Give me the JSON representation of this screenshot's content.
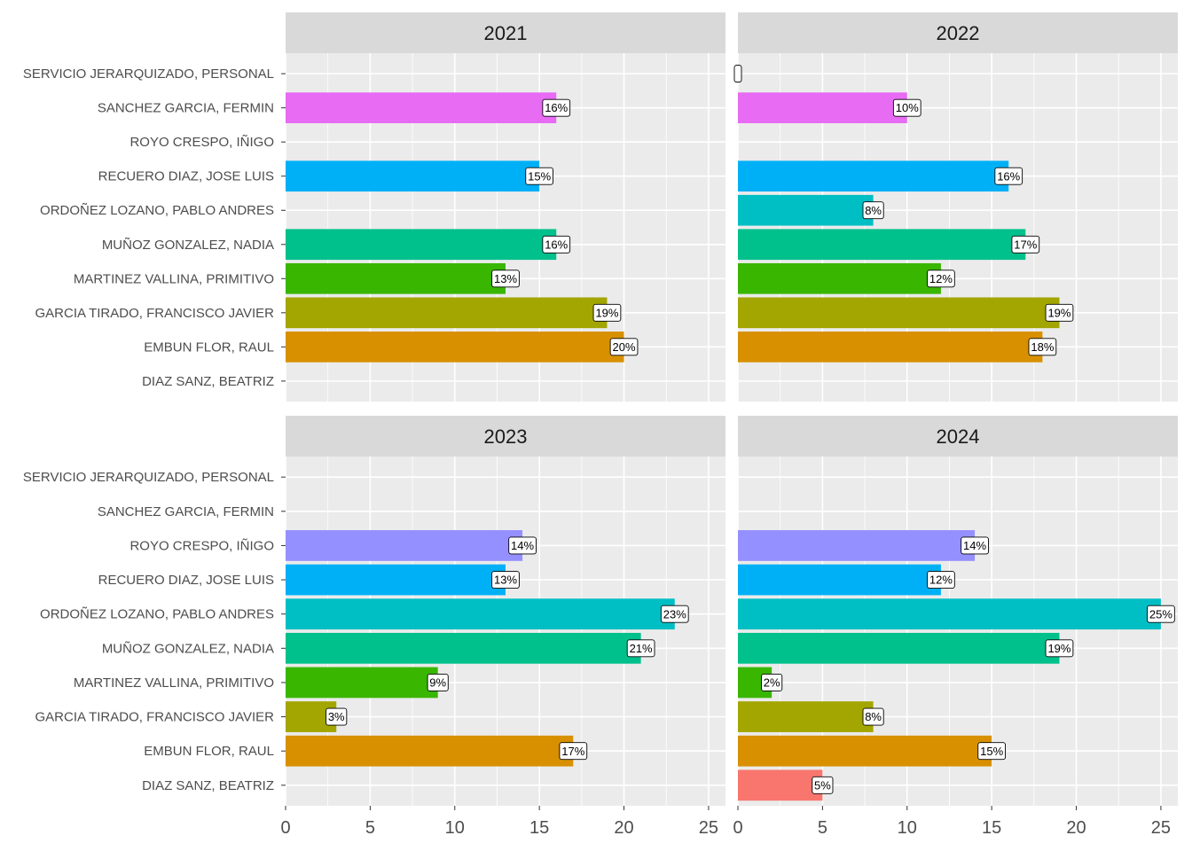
{
  "chart_data": {
    "type": "bar",
    "orientation": "horizontal",
    "layout": "facet_wrap_2x2",
    "title": "",
    "xlabel": "",
    "ylabel": "",
    "xlim": [
      0,
      26
    ],
    "x_ticks": [
      0,
      5,
      10,
      15,
      20,
      25
    ],
    "grid": true,
    "legend": "none",
    "categories": [
      "SERVICIO JERARQUIZADO, PERSONAL",
      "SANCHEZ GARCIA, FERMIN",
      "ROYO CRESPO, IÑIGO",
      "RECUERO DIAZ, JOSE LUIS",
      "ORDOÑEZ LOZANO, PABLO ANDRES",
      "MUÑOZ GONZALEZ, NADIA",
      "MARTINEZ VALLINA, PRIMITIVO",
      "GARCIA TIRADO, FRANCISCO JAVIER",
      "EMBUN FLOR, RAUL",
      "DIAZ SANZ, BEATRIZ"
    ],
    "category_colors": [
      "#FF61C3",
      "#E76BF3",
      "#9590FF",
      "#00B0F6",
      "#00BFC4",
      "#00C08B",
      "#39B600",
      "#A3A500",
      "#D89000",
      "#F8766D"
    ],
    "panels": [
      {
        "label": "2021",
        "values": [
          null,
          16,
          null,
          15,
          null,
          16,
          13,
          19,
          20,
          null
        ],
        "labels": [
          "",
          "16%",
          "",
          "15%",
          "",
          "16%",
          "13%",
          "19%",
          "20%",
          ""
        ]
      },
      {
        "label": "2022",
        "values": [
          0,
          10,
          null,
          16,
          8,
          17,
          12,
          19,
          18,
          null
        ],
        "labels": [
          "",
          "10%",
          "",
          "16%",
          "8%",
          "17%",
          "12%",
          "19%",
          "18%",
          ""
        ]
      },
      {
        "label": "2023",
        "values": [
          null,
          null,
          14,
          13,
          23,
          21,
          9,
          3,
          17,
          null
        ],
        "labels": [
          "",
          "",
          "14%",
          "13%",
          "23%",
          "21%",
          "9%",
          "3%",
          "17%",
          ""
        ]
      },
      {
        "label": "2024",
        "values": [
          null,
          null,
          14,
          12,
          25,
          19,
          2,
          8,
          15,
          5
        ],
        "labels": [
          "",
          "",
          "14%",
          "12%",
          "25%",
          "19%",
          "2%",
          "8%",
          "15%",
          "5%"
        ]
      }
    ]
  }
}
